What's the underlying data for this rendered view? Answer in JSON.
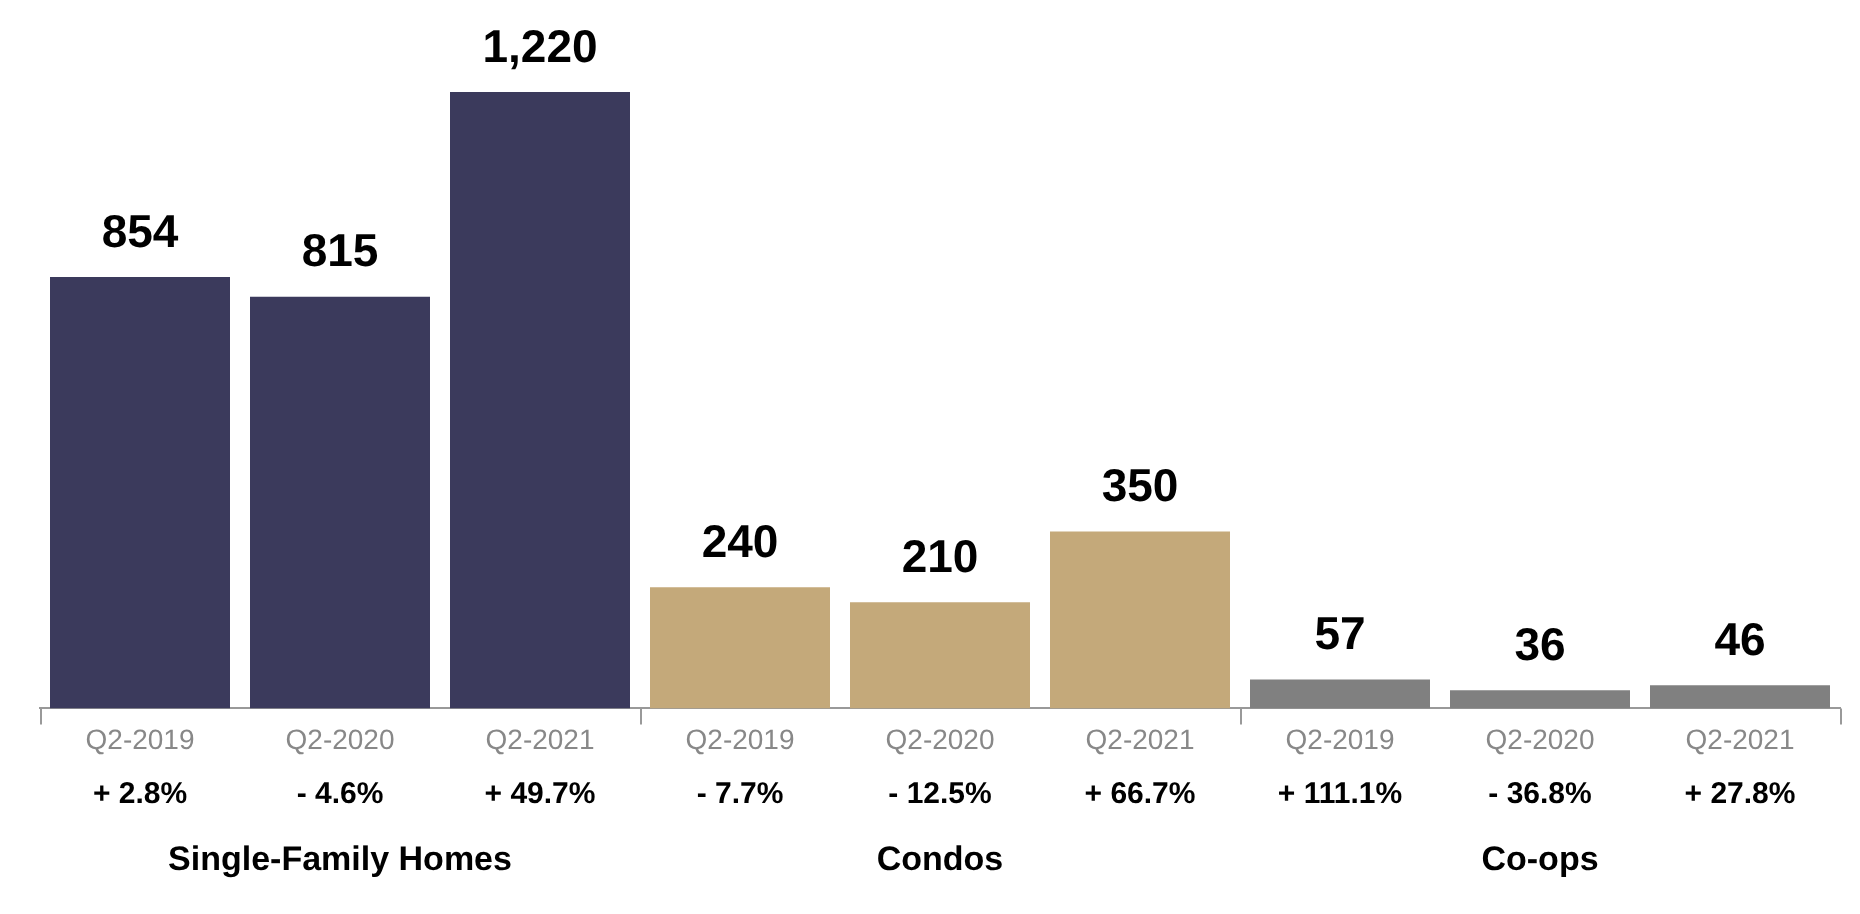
{
  "chart_data": {
    "type": "bar",
    "categories": [
      "Q2-2019",
      "Q2-2020",
      "Q2-2021",
      "Q2-2019",
      "Q2-2020",
      "Q2-2021",
      "Q2-2019",
      "Q2-2020",
      "Q2-2021"
    ],
    "values": [
      854,
      815,
      1220,
      240,
      210,
      350,
      57,
      36,
      46
    ],
    "colors": [
      "#3b3a5c",
      "#3b3a5c",
      "#3b3a5c",
      "#c4a97a",
      "#c4a97a",
      "#c4a97a",
      "#808080",
      "#808080",
      "#808080"
    ],
    "value_labels": [
      "854",
      "815",
      "1,220",
      "240",
      "210",
      "350",
      "57",
      "36",
      "46"
    ],
    "annotations": [
      "+ 2.8%",
      "- 4.6%",
      "+ 49.7%",
      "- 7.7%",
      "- 12.5%",
      "+ 66.7%",
      "+ 111.1%",
      "- 36.8%",
      "+ 27.8%",
      "Single-Family Homes",
      "Condos",
      "Co-ops"
    ],
    "grid": false,
    "legend": false
  }
}
